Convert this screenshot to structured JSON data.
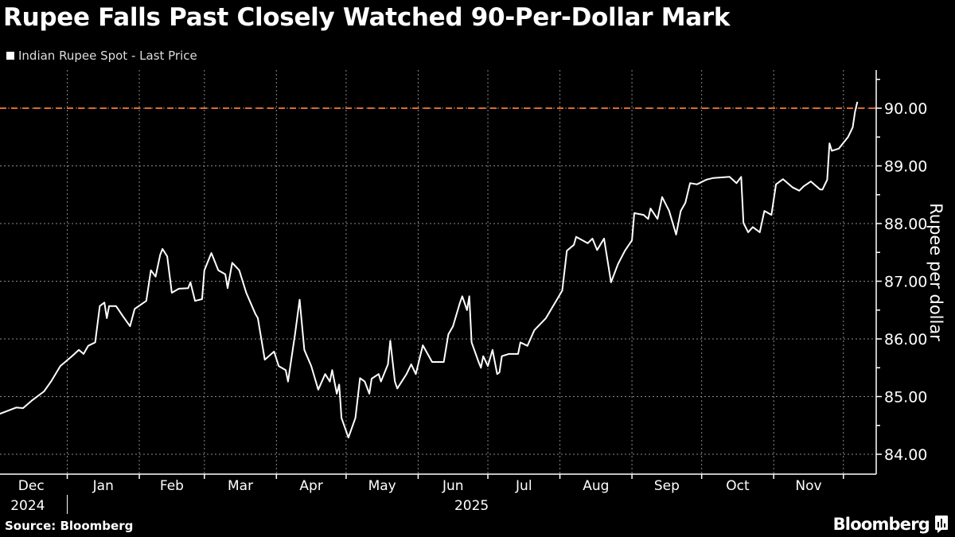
{
  "title": "Rupee Falls Past Closely Watched 90-Per-Dollar Mark",
  "source": "Source: Bloomberg",
  "brand": "Bloomberg",
  "colors": {
    "line": "#ffffff",
    "reference": "#e0692a",
    "grid": "#8a8a8a",
    "background": "#000000"
  },
  "chart_data": {
    "type": "line",
    "title": "Rupee Falls Past Closely Watched 90-Per-Dollar Mark",
    "legend": [
      {
        "label": "Indian Rupee Spot - Last Price",
        "position": "top-left"
      }
    ],
    "ylabel": "Rupee per dollar",
    "xlabel": "",
    "ylim": [
      83.8,
      90.7
    ],
    "yticks": [
      84,
      85,
      86,
      87,
      88,
      89,
      90
    ],
    "ytick_labels": [
      "84.00",
      "85.00",
      "86.00",
      "87.00",
      "88.00",
      "89.00",
      "90.00"
    ],
    "xlim_days": [
      -2,
      379
    ],
    "x_unit": "days from start of Dec 2024",
    "month_ticks": [
      {
        "label": "Dec",
        "day": 0
      },
      {
        "label": "Jan",
        "day": 31
      },
      {
        "label": "Feb",
        "day": 62
      },
      {
        "label": "Mar",
        "day": 90
      },
      {
        "label": "Apr",
        "day": 121
      },
      {
        "label": "May",
        "day": 151
      },
      {
        "label": "Jun",
        "day": 182
      },
      {
        "label": "Jul",
        "day": 212
      },
      {
        "label": "Aug",
        "day": 243
      },
      {
        "label": "Sep",
        "day": 274
      },
      {
        "label": "Oct",
        "day": 304
      },
      {
        "label": "Nov",
        "day": 335
      }
    ],
    "end_tick_day": 365,
    "years": [
      {
        "label": "2024",
        "day": 14
      },
      {
        "label": "2025",
        "day": 205
      }
    ],
    "year_divider_day": 31,
    "reference_line": {
      "value": 90.0,
      "style": "dashed"
    },
    "grid": true,
    "series": [
      {
        "name": "Indian Rupee Spot - Last Price",
        "points": [
          [
            2,
            84.7
          ],
          [
            9,
            84.81
          ],
          [
            12,
            84.8
          ],
          [
            16,
            84.94
          ],
          [
            21,
            85.09
          ],
          [
            24,
            85.26
          ],
          [
            28,
            85.53
          ],
          [
            33,
            85.7
          ],
          [
            36,
            85.81
          ],
          [
            38,
            85.74
          ],
          [
            40,
            85.88
          ],
          [
            43,
            85.94
          ],
          [
            45,
            86.57
          ],
          [
            47,
            86.63
          ],
          [
            48,
            86.36
          ],
          [
            49,
            86.57
          ],
          [
            52,
            86.57
          ],
          [
            55,
            86.39
          ],
          [
            58,
            86.22
          ],
          [
            60,
            86.52
          ],
          [
            65,
            86.66
          ],
          [
            67,
            87.19
          ],
          [
            69,
            87.08
          ],
          [
            71,
            87.46
          ],
          [
            72,
            87.56
          ],
          [
            74,
            87.43
          ],
          [
            76,
            86.8
          ],
          [
            79,
            86.87
          ],
          [
            83,
            86.88
          ],
          [
            84,
            86.98
          ],
          [
            86,
            86.66
          ],
          [
            89,
            86.69
          ],
          [
            90,
            87.19
          ],
          [
            93,
            87.49
          ],
          [
            96,
            87.19
          ],
          [
            99,
            87.12
          ],
          [
            100,
            86.88
          ],
          [
            102,
            87.32
          ],
          [
            105,
            87.19
          ],
          [
            108,
            86.8
          ],
          [
            112,
            86.43
          ],
          [
            113,
            86.36
          ],
          [
            116,
            85.64
          ],
          [
            118,
            85.71
          ],
          [
            120,
            85.78
          ],
          [
            122,
            85.53
          ],
          [
            125,
            85.46
          ],
          [
            126,
            85.26
          ],
          [
            129,
            86.08
          ],
          [
            131,
            86.68
          ],
          [
            133,
            85.81
          ],
          [
            136,
            85.53
          ],
          [
            139,
            85.12
          ],
          [
            142,
            85.39
          ],
          [
            144,
            85.26
          ],
          [
            145,
            85.46
          ],
          [
            147,
            85.05
          ],
          [
            148,
            85.21
          ],
          [
            149,
            84.63
          ],
          [
            152,
            84.29
          ],
          [
            155,
            84.63
          ],
          [
            157,
            85.32
          ],
          [
            159,
            85.26
          ],
          [
            161,
            85.05
          ],
          [
            162,
            85.31
          ],
          [
            165,
            85.39
          ],
          [
            166,
            85.26
          ],
          [
            169,
            85.56
          ],
          [
            170,
            85.97
          ],
          [
            172,
            85.26
          ],
          [
            173,
            85.14
          ],
          [
            177,
            85.39
          ],
          [
            179,
            85.56
          ],
          [
            181,
            85.39
          ],
          [
            184,
            85.89
          ],
          [
            188,
            85.6
          ],
          [
            193,
            85.6
          ],
          [
            195,
            86.08
          ],
          [
            197,
            86.22
          ],
          [
            200,
            86.63
          ],
          [
            201,
            86.74
          ],
          [
            203,
            86.5
          ],
          [
            204,
            86.74
          ],
          [
            205,
            85.94
          ],
          [
            208,
            85.6
          ],
          [
            209,
            85.5
          ],
          [
            210,
            85.7
          ],
          [
            212,
            85.53
          ],
          [
            214,
            85.81
          ],
          [
            216,
            85.39
          ],
          [
            217,
            85.42
          ],
          [
            218,
            85.7
          ],
          [
            221,
            85.74
          ],
          [
            225,
            85.74
          ],
          [
            226,
            85.94
          ],
          [
            229,
            85.88
          ],
          [
            232,
            86.15
          ],
          [
            237,
            86.36
          ],
          [
            242,
            86.7
          ],
          [
            244,
            86.84
          ],
          [
            246,
            87.53
          ],
          [
            249,
            87.63
          ],
          [
            250,
            87.77
          ],
          [
            255,
            87.66
          ],
          [
            257,
            87.74
          ],
          [
            259,
            87.54
          ],
          [
            262,
            87.74
          ],
          [
            265,
            86.98
          ],
          [
            268,
            87.3
          ],
          [
            271,
            87.53
          ],
          [
            274,
            87.71
          ],
          [
            275,
            88.18
          ],
          [
            279,
            88.15
          ],
          [
            281,
            88.08
          ],
          [
            282,
            88.26
          ],
          [
            285,
            88.08
          ],
          [
            287,
            88.46
          ],
          [
            290,
            88.22
          ],
          [
            293,
            87.81
          ],
          [
            295,
            88.22
          ],
          [
            297,
            88.36
          ],
          [
            299,
            88.7
          ],
          [
            302,
            88.68
          ],
          [
            306,
            88.76
          ],
          [
            309,
            88.79
          ],
          [
            316,
            88.81
          ],
          [
            319,
            88.7
          ],
          [
            321,
            88.81
          ],
          [
            322,
            88.01
          ],
          [
            324,
            87.85
          ],
          [
            326,
            87.94
          ],
          [
            329,
            87.85
          ],
          [
            331,
            88.22
          ],
          [
            334,
            88.15
          ],
          [
            336,
            88.68
          ],
          [
            339,
            88.77
          ],
          [
            343,
            88.63
          ],
          [
            346,
            88.57
          ],
          [
            348,
            88.65
          ],
          [
            351,
            88.73
          ],
          [
            355,
            88.59
          ],
          [
            356,
            88.59
          ],
          [
            358,
            88.76
          ],
          [
            359,
            89.39
          ],
          [
            360,
            89.26
          ],
          [
            363,
            89.3
          ],
          [
            367,
            89.5
          ],
          [
            369,
            89.67
          ],
          [
            370,
            89.94
          ],
          [
            371,
            90.11
          ]
        ]
      }
    ]
  }
}
